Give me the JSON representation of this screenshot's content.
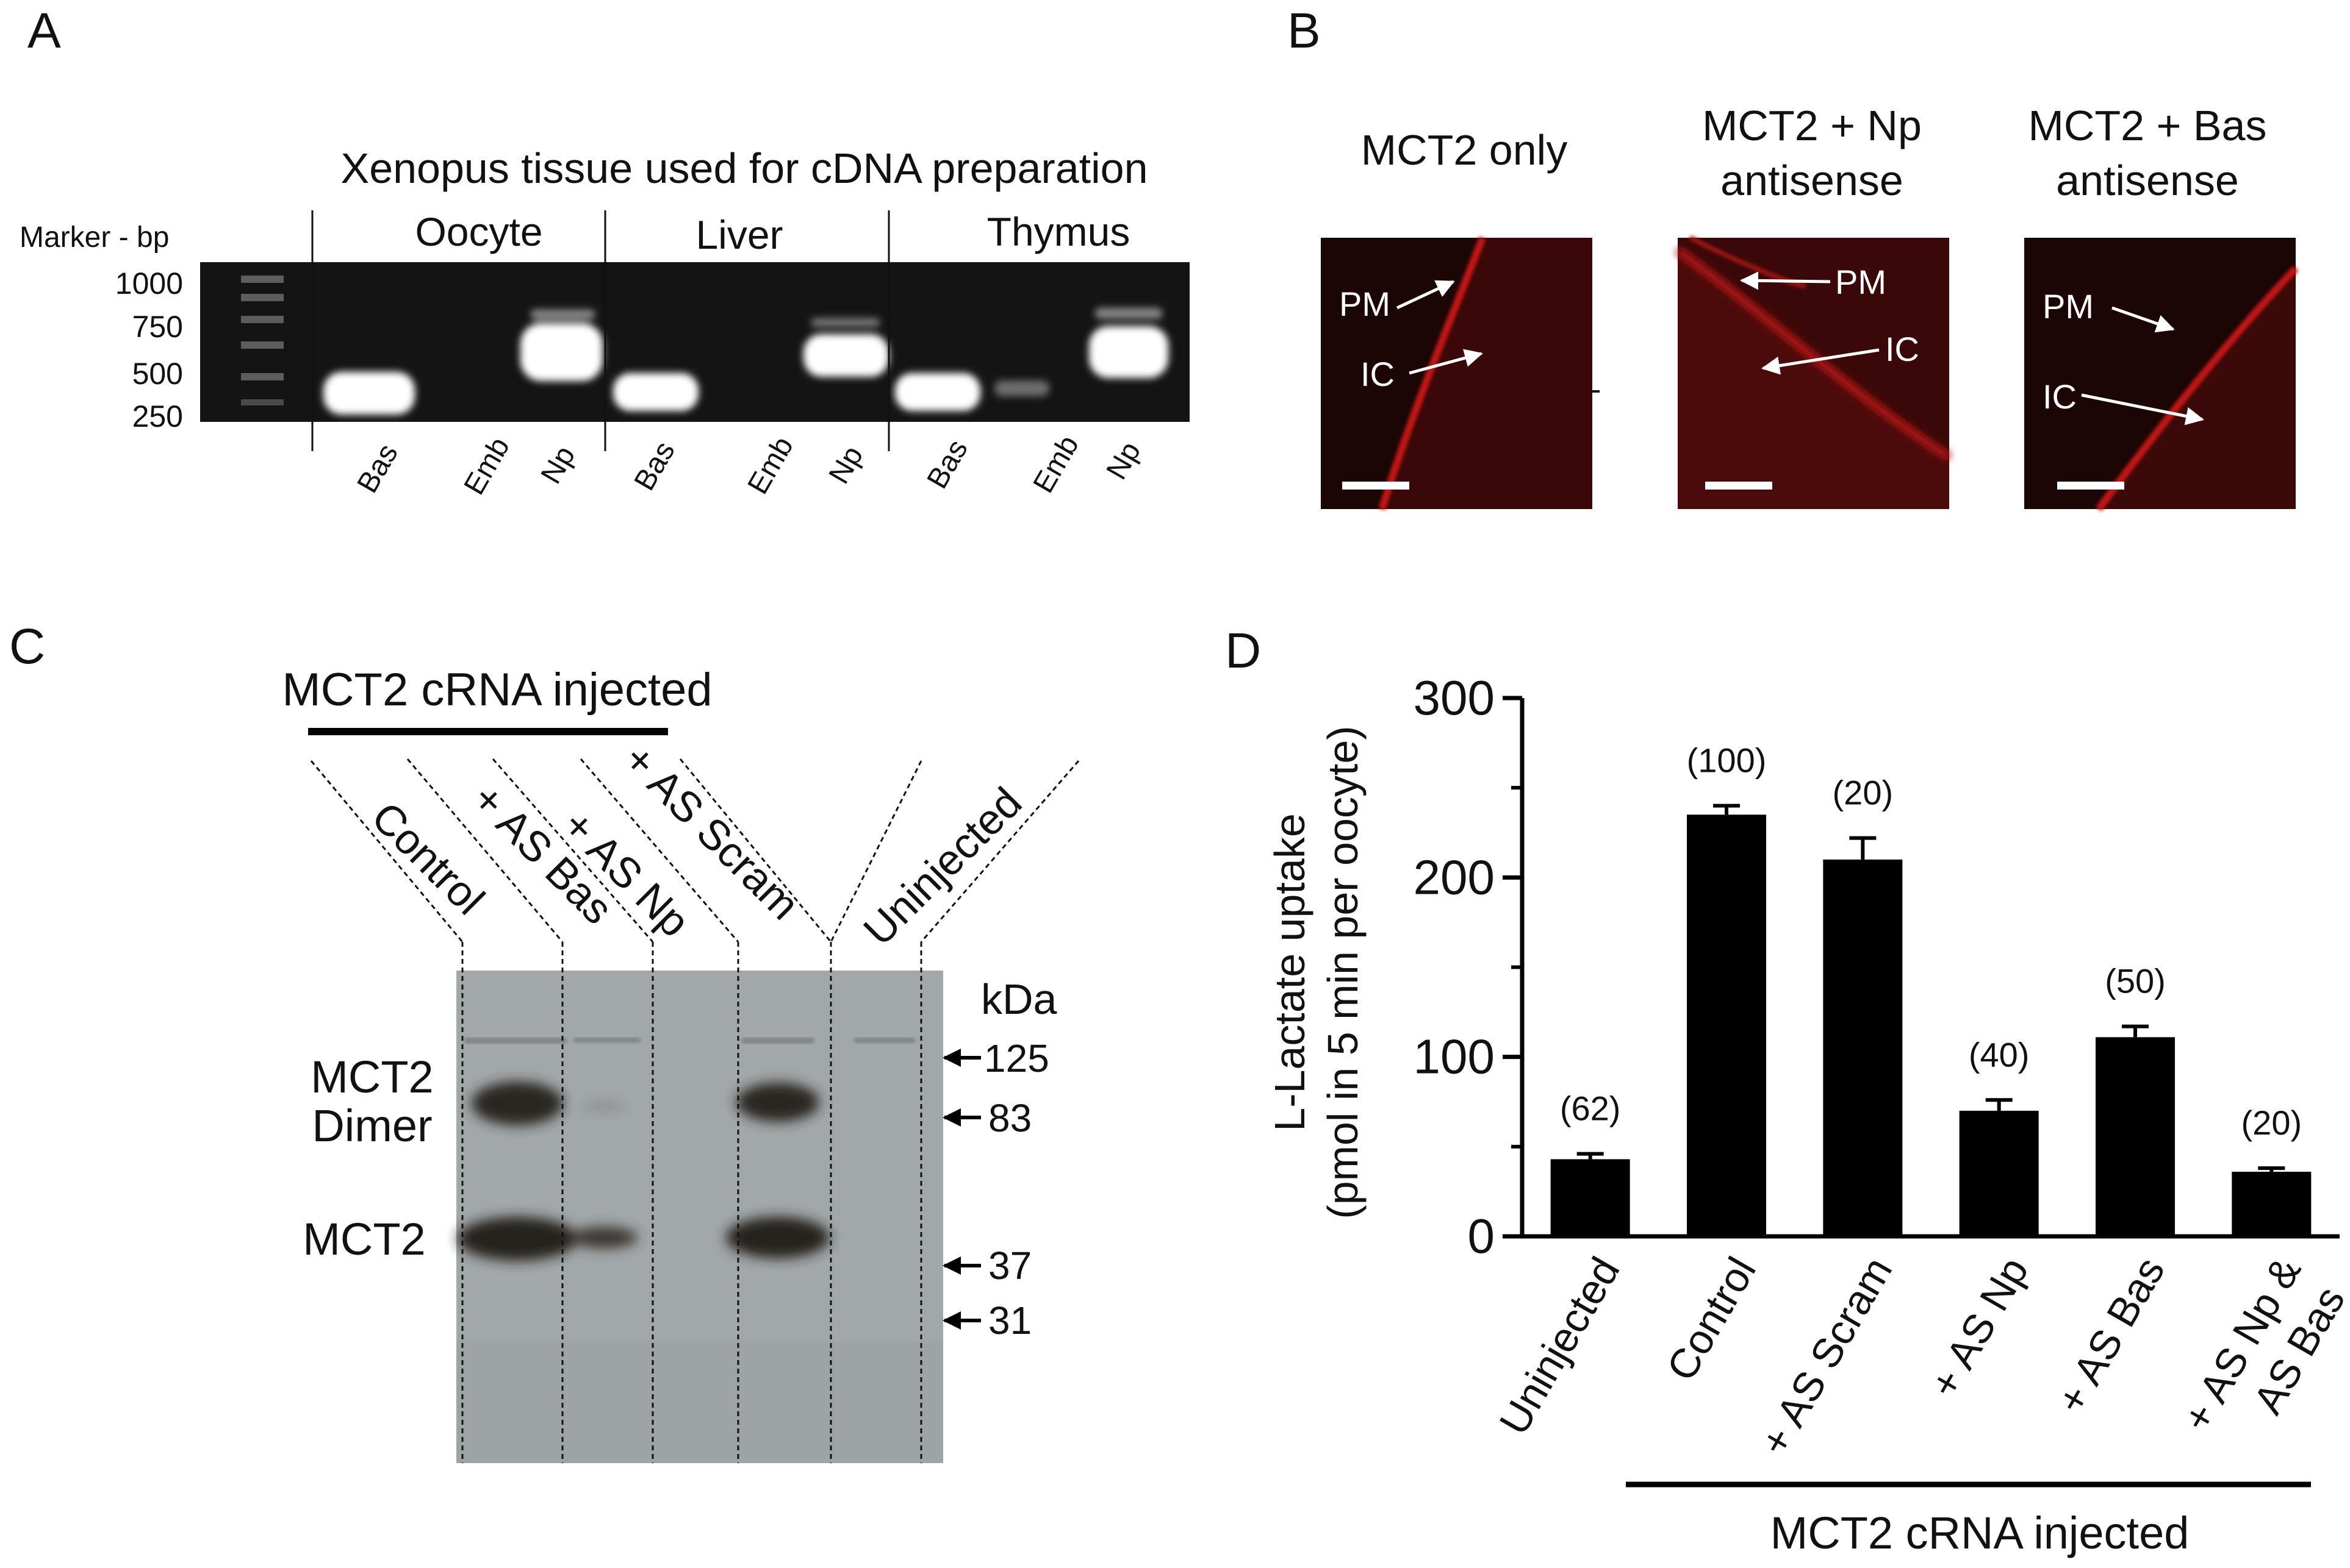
{
  "colors": {
    "gel_bg": "#141414",
    "band": "#ffffff",
    "blot_bg": "#a2a7a9",
    "blot_band": "#2e2a26",
    "fluor": "#a10f0f",
    "bar": "#000000"
  },
  "panel_a": {
    "letter": "A",
    "title": "Xenopus tissue used for cDNA preparation",
    "marker_label": "Marker - bp",
    "markers": [
      "1000",
      "750",
      "500",
      "250"
    ],
    "tissues": [
      "Oocyte",
      "Liver",
      "Thymus"
    ],
    "lanes": [
      "Bas",
      "Emb",
      "Np",
      "Bas",
      "Emb",
      "Np",
      "Bas",
      "Emb",
      "Np"
    ]
  },
  "panel_b": {
    "letter": "B",
    "images": [
      {
        "title_lines": [
          "MCT2 only"
        ],
        "labels": [
          "PM",
          "IC"
        ]
      },
      {
        "title_lines": [
          "MCT2 + Np",
          "antisense"
        ],
        "labels": [
          "PM",
          "IC"
        ]
      },
      {
        "title_lines": [
          "MCT2 + Bas",
          "antisense"
        ],
        "labels": [
          "PM",
          "IC"
        ]
      }
    ]
  },
  "panel_c": {
    "letter": "C",
    "group_label": "MCT2 cRNA injected",
    "lanes": [
      "Control",
      "+ AS Bas",
      "+ AS Np",
      "+ AS Scram",
      "Uninjected"
    ],
    "band_labels": {
      "dimer_1": "MCT2",
      "dimer_2": "Dimer",
      "monomer": "MCT2"
    },
    "kda_label": "kDa",
    "kda_markers": [
      "125",
      "83",
      "37",
      "31"
    ]
  },
  "chart_data": {
    "type": "bar",
    "panel_letter": "D",
    "categories": [
      "Uninjected",
      "Control",
      "+ AS Scram",
      "+ AS Np",
      "+ AS Bas",
      "+ AS Np & AS Bas"
    ],
    "category_lines": [
      [
        "Uninjected"
      ],
      [
        "Control"
      ],
      [
        "+ AS Scram"
      ],
      [
        "+ AS Np"
      ],
      [
        "+ AS Bas"
      ],
      [
        "+ AS Np &",
        "AS Bas"
      ]
    ],
    "values": [
      43,
      235,
      210,
      70,
      111,
      36
    ],
    "errors": [
      3,
      5,
      12,
      6,
      6,
      2
    ],
    "n_labels": [
      "(62)",
      "(100)",
      "(20)",
      "(40)",
      "(50)",
      "(20)"
    ],
    "ylabel_line1": "L-Lactate uptake",
    "ylabel_line2": "(pmol in 5 min per oocyte)",
    "ylim": [
      0,
      300
    ],
    "yticks": [
      "0",
      "100",
      "200",
      "300"
    ],
    "group_label": "MCT2 cRNA injected",
    "grid": false
  }
}
